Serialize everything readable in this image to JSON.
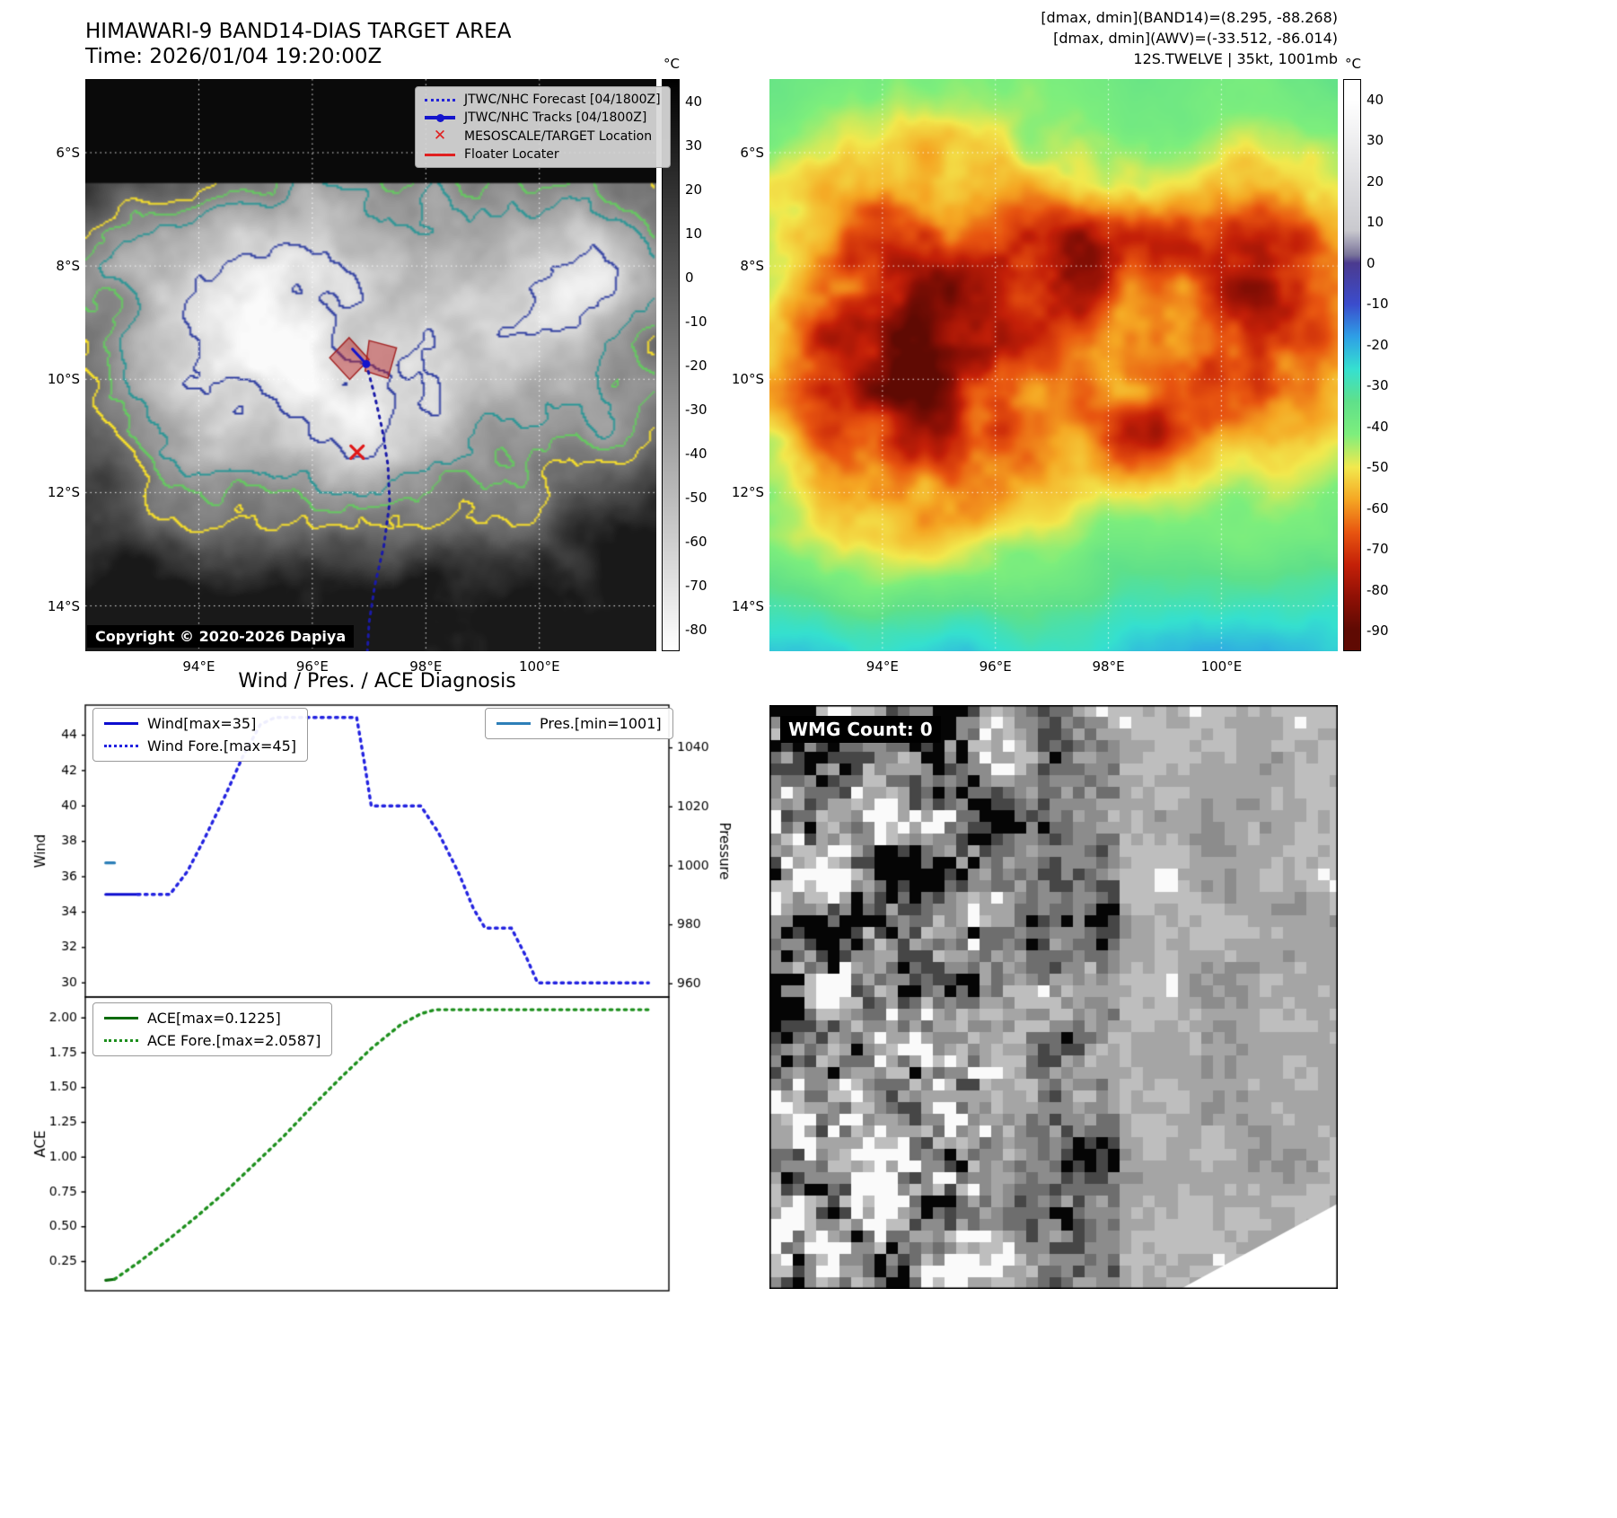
{
  "panel_band14": {
    "title": "HIMAWARI-9 BAND14-DIAS TARGET AREA",
    "time": "Time: 2026/01/04 19:20:00Z",
    "copyright": "Copyright © 2020-2026 Dapiya",
    "legend": [
      "JTWC/NHC Forecast [04/1800Z]",
      "JTWC/NHC Tracks [04/1800Z]",
      "MESOSCALE/TARGET Location",
      "Floater Locater"
    ],
    "lat_ticks": [
      "6°S",
      "8°S",
      "10°S",
      "12°S",
      "14°S"
    ],
    "lon_ticks": [
      "94°E",
      "96°E",
      "98°E",
      "100°E"
    ],
    "colorbar_unit": "°C",
    "colorbar_ticks": [
      "40",
      "30",
      "20",
      "10",
      "0",
      "-10",
      "-20",
      "-30",
      "-40",
      "-50",
      "-60",
      "-70",
      "-80"
    ],
    "colorbar_range": [
      45,
      -85
    ],
    "colormap": [
      [
        45,
        "#000000"
      ],
      [
        -85,
        "#ffffff"
      ]
    ],
    "overlays": {
      "target_marker": [
        0.476,
        0.652
      ],
      "track_point": [
        0.492,
        0.498
      ],
      "track_solid": [
        [
          0.468,
          0.472
        ],
        [
          0.492,
          0.498
        ]
      ],
      "forecast_track": [
        [
          0.492,
          0.498
        ],
        [
          0.506,
          0.55
        ],
        [
          0.52,
          0.612
        ],
        [
          0.53,
          0.675
        ],
        [
          0.533,
          0.74
        ],
        [
          0.523,
          0.815
        ],
        [
          0.507,
          0.885
        ],
        [
          0.497,
          0.95
        ],
        [
          0.494,
          1.0
        ]
      ],
      "target_boxes": [
        [
          [
            0.428,
            0.487
          ],
          [
            0.462,
            0.452
          ],
          [
            0.497,
            0.49
          ],
          [
            0.463,
            0.525
          ]
        ],
        [
          [
            0.497,
            0.457
          ],
          [
            0.545,
            0.47
          ],
          [
            0.53,
            0.523
          ],
          [
            0.49,
            0.51
          ]
        ]
      ]
    }
  },
  "panel_awv": {
    "header_lines": [
      "[dmax, dmin](BAND14)=(8.295, -88.268)",
      "[dmax, dmin](AWV)=(-33.512, -86.014)",
      "12S.TWELVE | 35kt, 1001mb"
    ],
    "lat_ticks": [
      "6°S",
      "8°S",
      "10°S",
      "12°S",
      "14°S"
    ],
    "lon_ticks": [
      "94°E",
      "96°E",
      "98°E",
      "100°E"
    ],
    "colorbar_unit": "°C",
    "colorbar_ticks": [
      "40",
      "30",
      "20",
      "10",
      "0",
      "-10",
      "-20",
      "-30",
      "-40",
      "-50",
      "-60",
      "-70",
      "-80",
      "-90"
    ],
    "colorbar_range": [
      45,
      -95
    ],
    "colormap": [
      [
        40,
        "#ffffff"
      ],
      [
        8,
        "#c9c9ce"
      ],
      [
        2,
        "#79739a"
      ],
      [
        0,
        "#4b3a8f"
      ],
      [
        -10,
        "#3b4ccc"
      ],
      [
        -18,
        "#2e9fe6"
      ],
      [
        -26,
        "#35e0d0"
      ],
      [
        -34,
        "#5fe08a"
      ],
      [
        -42,
        "#7dee7d"
      ],
      [
        -50,
        "#f2e94e"
      ],
      [
        -58,
        "#f5a623"
      ],
      [
        -66,
        "#e85510"
      ],
      [
        -74,
        "#c42008"
      ],
      [
        -82,
        "#8f1005"
      ],
      [
        -90,
        "#5f0a03"
      ]
    ]
  },
  "diagnosis": {
    "title": "Wind / Pres. / ACE Diagnosis"
  },
  "wmg": {
    "count_label": "WMG Count: 0"
  },
  "chart_data": [
    {
      "id": "wind-pressure",
      "type": "line",
      "ylabel_left": "Wind",
      "ylabel_right": "Pressure",
      "ylim_left": [
        29.2,
        45.7
      ],
      "ylim_right": [
        955.5,
        1054.5
      ],
      "yticks_left": [
        "44",
        "42",
        "40",
        "38",
        "36",
        "34",
        "32",
        "30"
      ],
      "yticks_right": [
        "1040",
        "1020",
        "1000",
        "980",
        "960"
      ],
      "xlim": [
        0,
        1
      ],
      "series": [
        {
          "name": "Wind[max=35]",
          "color": "#0d0dcf",
          "dash": "solid",
          "width": 3.2,
          "axis": "left",
          "points": [
            [
              0.035,
              35
            ],
            [
              0.09,
              35
            ]
          ]
        },
        {
          "name": "Wind Fore.[max=45]",
          "color": "#2222e0",
          "dash": "dotted",
          "width": 3.4,
          "axis": "left",
          "points": [
            [
              0.09,
              35
            ],
            [
              0.145,
              35
            ],
            [
              0.175,
              36.3
            ],
            [
              0.205,
              38.2
            ],
            [
              0.24,
              40.6
            ],
            [
              0.27,
              42.8
            ],
            [
              0.3,
              44.6
            ],
            [
              0.325,
              45
            ],
            [
              0.465,
              45
            ],
            [
              0.478,
              42.5
            ],
            [
              0.49,
              40
            ],
            [
              0.575,
              40
            ],
            [
              0.605,
              38.5
            ],
            [
              0.64,
              36.2
            ],
            [
              0.665,
              34.2
            ],
            [
              0.685,
              33.1
            ],
            [
              0.73,
              33.1
            ],
            [
              0.755,
              31.5
            ],
            [
              0.775,
              30
            ],
            [
              0.965,
              30
            ]
          ]
        },
        {
          "name": "Pres.[min=1001]",
          "color": "#2d7fb8",
          "dash": "solid",
          "width": 3.2,
          "axis": "right",
          "points": [
            [
              0.035,
              1001
            ],
            [
              0.05,
              1001
            ]
          ]
        }
      ]
    },
    {
      "id": "ace",
      "type": "line",
      "ylabel_left": "ACE",
      "ylim_left": [
        0.04,
        2.15
      ],
      "yticks_left": [
        "2.00",
        "1.75",
        "1.50",
        "1.25",
        "1.00",
        "0.75",
        "0.50",
        "0.25"
      ],
      "xlim": [
        0,
        1
      ],
      "series": [
        {
          "name": "ACE[max=0.1225]",
          "color": "#0b6b0b",
          "dash": "solid",
          "width": 3.2,
          "axis": "left",
          "points": [
            [
              0.035,
              0.115
            ],
            [
              0.05,
              0.1225
            ]
          ]
        },
        {
          "name": "ACE Fore.[max=2.0587]",
          "color": "#1d8f1d",
          "dash": "dotted",
          "width": 3.4,
          "axis": "left",
          "points": [
            [
              0.05,
              0.1225
            ],
            [
              0.09,
              0.24
            ],
            [
              0.14,
              0.4
            ],
            [
              0.19,
              0.57
            ],
            [
              0.24,
              0.75
            ],
            [
              0.29,
              0.95
            ],
            [
              0.34,
              1.15
            ],
            [
              0.39,
              1.37
            ],
            [
              0.44,
              1.58
            ],
            [
              0.49,
              1.78
            ],
            [
              0.54,
              1.95
            ],
            [
              0.575,
              2.03
            ],
            [
              0.6,
              2.059
            ],
            [
              0.965,
              2.059
            ]
          ]
        }
      ]
    }
  ]
}
